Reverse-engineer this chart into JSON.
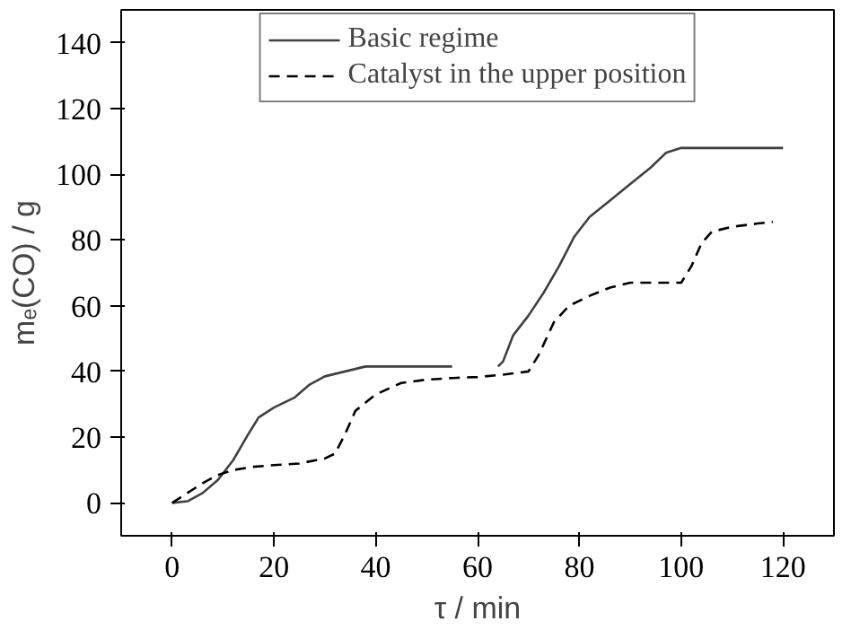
{
  "chart_data": {
    "type": "line",
    "xlabel": "τ / min",
    "ylabel": "mₑ(CO) / g",
    "xlim": [
      -10,
      130
    ],
    "ylim": [
      -10,
      150
    ],
    "xticks": [
      0,
      20,
      40,
      60,
      80,
      100,
      120
    ],
    "yticks": [
      0,
      20,
      40,
      60,
      80,
      100,
      120,
      140
    ],
    "grid": false,
    "legend": "top",
    "marker": "none",
    "series": [
      {
        "name": "Basic regime",
        "color": "#404040",
        "line_style": "solid",
        "x": [
          0,
          3,
          6,
          9,
          12,
          15,
          17,
          20,
          24,
          27,
          30,
          34,
          38,
          55,
          60,
          64,
          65,
          67,
          70,
          73,
          76,
          79,
          82,
          86,
          90,
          94,
          97,
          100,
          120
        ],
        "values": [
          0,
          0.5,
          3,
          7,
          13,
          21,
          26,
          29,
          32,
          36,
          38.5,
          40,
          41.5,
          41.5,
          null,
          41.5,
          43,
          51,
          57,
          64,
          72,
          81,
          87,
          92,
          97,
          102,
          106.5,
          108,
          108
        ]
      },
      {
        "name": "Catalyst in the upper position",
        "color": "#000000",
        "line_style": "dashed",
        "x": [
          0,
          3,
          6,
          9,
          12,
          16,
          20,
          25,
          30,
          32,
          34,
          36,
          40,
          45,
          50,
          55,
          60,
          65,
          70,
          72,
          75,
          78,
          82,
          86,
          90,
          95,
          100,
          102,
          104,
          106,
          110,
          115,
          118
        ],
        "values": [
          0,
          3,
          6,
          8.5,
          10,
          11,
          11.5,
          12,
          13.5,
          15,
          21,
          28,
          33,
          36.5,
          37.5,
          38,
          38.3,
          39,
          40,
          45,
          55,
          60,
          63,
          65.5,
          67,
          67,
          67,
          72,
          79,
          82.5,
          84,
          85,
          85.5
        ]
      }
    ]
  }
}
